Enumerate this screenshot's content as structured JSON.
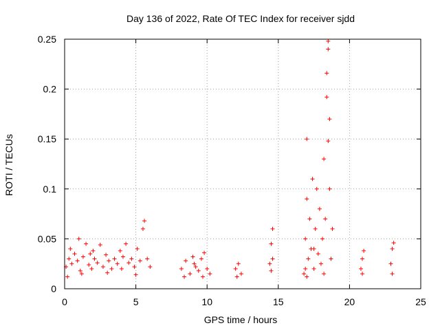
{
  "chart_data": {
    "type": "scatter",
    "title": "Day 136 of 2022, Rate Of TEC Index for receiver sjdd",
    "xlabel": "GPS time / hours",
    "ylabel": "ROTI / TECUs",
    "xlim": [
      0,
      25
    ],
    "ylim": [
      0,
      0.25
    ],
    "xticks": [
      "0",
      "5",
      "10",
      "15",
      "20",
      "25"
    ],
    "yticks": [
      "0",
      "0.05",
      "0.1",
      "0.15",
      "0.2",
      "0.25"
    ],
    "grid": true,
    "marker": "+",
    "color": "#ff0000",
    "series": [
      {
        "name": "ROTI",
        "points": [
          [
            0.1,
            0.022
          ],
          [
            0.3,
            0.03
          ],
          [
            0.5,
            0.025
          ],
          [
            0.7,
            0.035
          ],
          [
            0.9,
            0.028
          ],
          [
            1.0,
            0.05
          ],
          [
            1.1,
            0.018
          ],
          [
            1.3,
            0.032
          ],
          [
            1.5,
            0.045
          ],
          [
            1.7,
            0.024
          ],
          [
            1.9,
            0.02
          ],
          [
            2.1,
            0.03
          ],
          [
            2.3,
            0.026
          ],
          [
            2.5,
            0.044
          ],
          [
            2.7,
            0.022
          ],
          [
            2.9,
            0.034
          ],
          [
            3.1,
            0.028
          ],
          [
            3.3,
            0.02
          ],
          [
            3.5,
            0.03
          ],
          [
            3.7,
            0.025
          ],
          [
            3.9,
            0.038
          ],
          [
            4.1,
            0.032
          ],
          [
            4.3,
            0.045
          ],
          [
            4.5,
            0.026
          ],
          [
            4.7,
            0.03
          ],
          [
            4.9,
            0.022
          ],
          [
            5.1,
            0.04
          ],
          [
            5.3,
            0.028
          ],
          [
            5.5,
            0.06
          ],
          [
            5.6,
            0.068
          ],
          [
            5.8,
            0.03
          ],
          [
            6.0,
            0.022
          ],
          [
            0.4,
            0.04
          ],
          [
            1.2,
            0.015
          ],
          [
            2.0,
            0.038
          ],
          [
            3.0,
            0.016
          ],
          [
            4.0,
            0.02
          ],
          [
            5.0,
            0.014
          ],
          [
            0.2,
            0.012
          ],
          [
            1.8,
            0.035
          ],
          [
            8.2,
            0.02
          ],
          [
            8.5,
            0.028
          ],
          [
            8.8,
            0.015
          ],
          [
            9.0,
            0.032
          ],
          [
            9.2,
            0.022
          ],
          [
            9.4,
            0.018
          ],
          [
            9.6,
            0.03
          ],
          [
            9.8,
            0.036
          ],
          [
            10.0,
            0.02
          ],
          [
            10.2,
            0.015
          ],
          [
            8.4,
            0.012
          ],
          [
            9.1,
            0.025
          ],
          [
            9.7,
            0.012
          ],
          [
            12.0,
            0.02
          ],
          [
            12.2,
            0.025
          ],
          [
            12.4,
            0.015
          ],
          [
            12.1,
            0.012
          ],
          [
            14.4,
            0.025
          ],
          [
            14.5,
            0.045
          ],
          [
            14.6,
            0.06
          ],
          [
            14.5,
            0.018
          ],
          [
            14.6,
            0.03
          ],
          [
            16.8,
            0.015
          ],
          [
            16.9,
            0.05
          ],
          [
            17.0,
            0.15
          ],
          [
            17.0,
            0.09
          ],
          [
            17.1,
            0.03
          ],
          [
            17.2,
            0.07
          ],
          [
            17.3,
            0.04
          ],
          [
            17.4,
            0.11
          ],
          [
            17.5,
            0.02
          ],
          [
            17.6,
            0.06
          ],
          [
            17.7,
            0.1
          ],
          [
            17.8,
            0.035
          ],
          [
            17.9,
            0.08
          ],
          [
            18.0,
            0.025
          ],
          [
            18.1,
            0.05
          ],
          [
            18.2,
            0.13
          ],
          [
            18.3,
            0.07
          ],
          [
            18.4,
            0.216
          ],
          [
            18.4,
            0.192
          ],
          [
            18.5,
            0.148
          ],
          [
            18.5,
            0.248
          ],
          [
            18.5,
            0.24
          ],
          [
            18.6,
            0.17
          ],
          [
            18.6,
            0.1
          ],
          [
            18.7,
            0.03
          ],
          [
            18.8,
            0.06
          ],
          [
            16.9,
            0.02
          ],
          [
            17.5,
            0.04
          ],
          [
            18.2,
            0.015
          ],
          [
            17.0,
            0.012
          ],
          [
            20.8,
            0.02
          ],
          [
            20.9,
            0.03
          ],
          [
            21.0,
            0.038
          ],
          [
            20.9,
            0.015
          ],
          [
            22.9,
            0.025
          ],
          [
            23.0,
            0.04
          ],
          [
            23.1,
            0.046
          ],
          [
            23.0,
            0.015
          ]
        ]
      }
    ]
  }
}
